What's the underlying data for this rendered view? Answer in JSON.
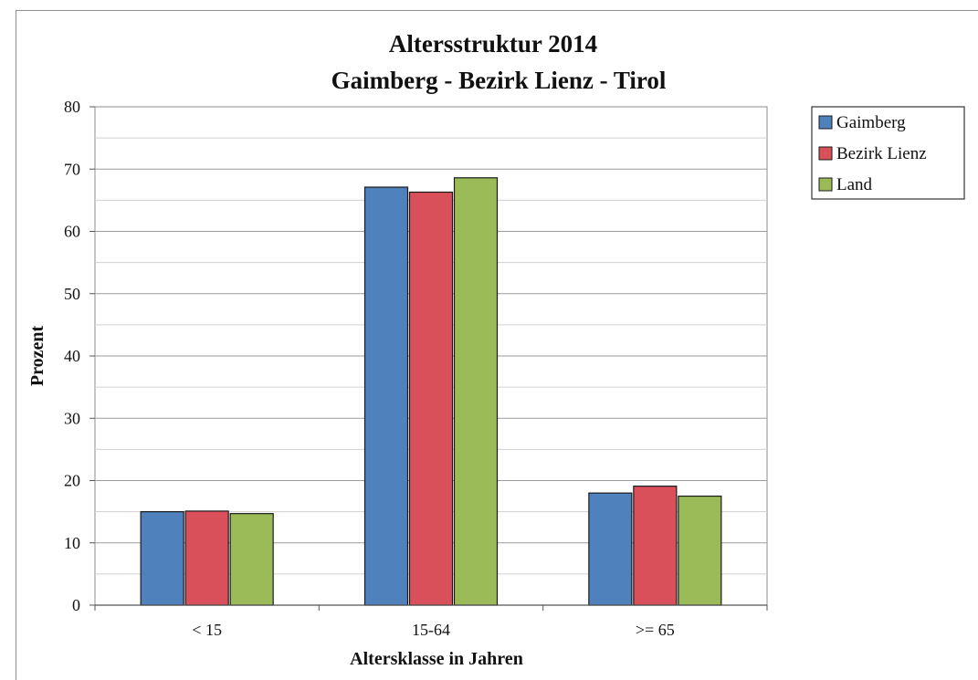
{
  "chart_data": {
    "type": "bar",
    "title": "Altersstruktur 2014",
    "subtitle": "Gaimberg - Bezirk Lienz - Tirol",
    "xlabel": "Altersklasse in Jahren",
    "ylabel": "Prozent",
    "categories": [
      "< 15",
      "15-64",
      ">= 65"
    ],
    "series": [
      {
        "name": "Gaimberg",
        "color": "#4f81bd",
        "values": [
          15.0,
          67.1,
          18.0
        ]
      },
      {
        "name": "Bezirk Lienz",
        "color": "#d9505a",
        "values": [
          15.1,
          66.3,
          19.1
        ]
      },
      {
        "name": "Land",
        "color": "#9bbb59",
        "values": [
          14.7,
          68.6,
          17.5
        ]
      }
    ],
    "ylim": [
      0,
      80
    ],
    "yticks": [
      0,
      10,
      20,
      30,
      40,
      50,
      60,
      70,
      80
    ],
    "grid": true,
    "legend_position": "top-right"
  }
}
